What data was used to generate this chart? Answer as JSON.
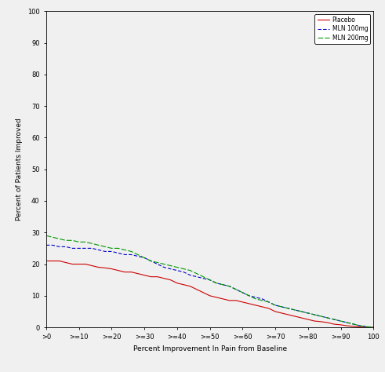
{
  "title": "",
  "xlabel": "Percent Improvement In Pain from Baseline",
  "ylabel": "Percent of Patients Improved",
  "xlim": [
    0,
    100
  ],
  "ylim": [
    0,
    100
  ],
  "xtick_labels": [
    ">0",
    ">=10",
    ">=20",
    ">=30",
    ">=40",
    ">=50",
    ">=60",
    ">=70",
    ">=80",
    ">=90",
    "100"
  ],
  "xtick_positions": [
    0,
    10,
    20,
    30,
    40,
    50,
    60,
    70,
    80,
    90,
    100
  ],
  "ytick_positions": [
    0,
    10,
    20,
    30,
    40,
    50,
    60,
    70,
    80,
    90,
    100
  ],
  "legend_labels": [
    "Placebo",
    "MLN 100mg",
    "MLN 200mg"
  ],
  "legend_colors": [
    "#ff0000",
    "#0000cc",
    "#009900"
  ],
  "placebo_x": [
    0,
    2,
    4,
    6,
    8,
    10,
    12,
    14,
    16,
    18,
    20,
    22,
    24,
    26,
    28,
    30,
    32,
    34,
    36,
    38,
    40,
    42,
    44,
    46,
    48,
    50,
    52,
    54,
    56,
    58,
    60,
    62,
    64,
    66,
    68,
    70,
    72,
    74,
    76,
    78,
    80,
    82,
    84,
    86,
    88,
    90,
    92,
    94,
    96,
    98,
    100
  ],
  "placebo_y": [
    21,
    21,
    21,
    20.5,
    20,
    20,
    20,
    19.5,
    19,
    18.8,
    18.5,
    18,
    17.5,
    17.5,
    17,
    16.5,
    16,
    16,
    15.5,
    15,
    14,
    13.5,
    13,
    12,
    11,
    10,
    9.5,
    9,
    8.5,
    8.5,
    8,
    7.5,
    7,
    6.5,
    6,
    5,
    4.5,
    4,
    3.5,
    3,
    2.5,
    2,
    1.8,
    1.5,
    1,
    0.8,
    0.5,
    0.3,
    0.1,
    0.05,
    0
  ],
  "mln100_x": [
    0,
    2,
    4,
    6,
    8,
    10,
    12,
    14,
    16,
    18,
    20,
    22,
    24,
    26,
    28,
    30,
    32,
    34,
    36,
    38,
    40,
    42,
    44,
    46,
    48,
    50,
    52,
    54,
    56,
    58,
    60,
    62,
    64,
    66,
    68,
    70,
    72,
    74,
    76,
    78,
    80,
    82,
    84,
    86,
    88,
    90,
    92,
    94,
    96,
    98,
    100
  ],
  "mln100_y": [
    26,
    26,
    25.5,
    25.5,
    25,
    25,
    25,
    25,
    24.5,
    24,
    24,
    23.5,
    23,
    23,
    22.5,
    22,
    21,
    20,
    19,
    18.5,
    18,
    17.5,
    16.5,
    16,
    15.5,
    15,
    14,
    13.5,
    13,
    12,
    11,
    10,
    9.5,
    9,
    8,
    7,
    6.5,
    6,
    5.5,
    5,
    4.5,
    4,
    3.5,
    3,
    2.5,
    2,
    1.5,
    1,
    0.5,
    0.2,
    0
  ],
  "mln200_x": [
    0,
    2,
    4,
    6,
    8,
    10,
    12,
    14,
    16,
    18,
    20,
    22,
    24,
    26,
    28,
    30,
    32,
    34,
    36,
    38,
    40,
    42,
    44,
    46,
    48,
    50,
    52,
    54,
    56,
    58,
    60,
    62,
    64,
    66,
    68,
    70,
    72,
    74,
    76,
    78,
    80,
    82,
    84,
    86,
    88,
    90,
    92,
    94,
    96,
    98,
    100
  ],
  "mln200_y": [
    29,
    28.5,
    28,
    27.5,
    27.5,
    27,
    27,
    26.5,
    26,
    25.5,
    25,
    25,
    24.5,
    24,
    23,
    22,
    21,
    20.5,
    20,
    19.5,
    19,
    18.5,
    18,
    17,
    16,
    15,
    14,
    13.5,
    13,
    12,
    11,
    10,
    9,
    8.5,
    8,
    7,
    6.5,
    6,
    5.5,
    5,
    4.5,
    4,
    3.5,
    3,
    2.5,
    2,
    1.5,
    1,
    0.5,
    0.2,
    0
  ],
  "background_color": "#f0f0f0",
  "line_color_placebo": "#cc0000",
  "line_color_mln100": "#0000cc",
  "line_color_mln200": "#009900"
}
